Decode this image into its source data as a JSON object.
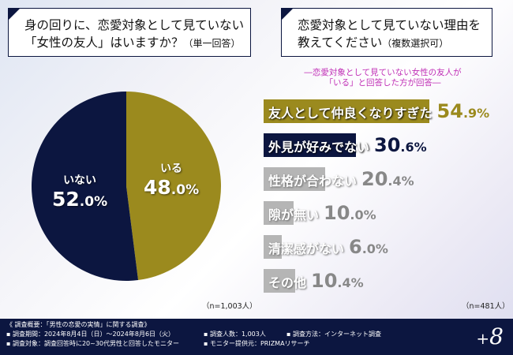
{
  "chart_data": [
    {
      "type": "pie",
      "title": "身の回りに、恋愛対象として見ていない「女性の友人」はいますか？",
      "title_note": "（単一回答）",
      "slices": [
        {
          "label": "いる",
          "value": 48.0,
          "color": "#9b8a1e"
        },
        {
          "label": "いない",
          "value": 52.0,
          "color": "#0c1640"
        }
      ],
      "n": "（n=1,003人）"
    },
    {
      "type": "bar",
      "orientation": "horizontal",
      "title": "恋愛対象として見ていない理由を教えてください",
      "title_note": "（複数選択可）",
      "subtitle": [
        "―恋愛対象として見ていない女性の友人が",
        "「いる」と回答した方が回答―"
      ],
      "categories": [
        "友人として仲良くなりすぎた",
        "外見が好みでない",
        "性格が合わない",
        "隙が無い",
        "清潔感がない",
        "その他"
      ],
      "values": [
        54.9,
        30.6,
        20.4,
        10.0,
        6.0,
        10.4
      ],
      "colors": [
        "#9b8a1e",
        "#0c1640",
        "#b5b5b5",
        "#b5b5b5",
        "#b5b5b5",
        "#b5b5b5"
      ],
      "unit": "%",
      "n": "（n=481人）"
    }
  ],
  "footer": {
    "title": "《 調査概要：「男性の恋愛の実情」に関する調査》",
    "period": "▪ 調査期間：2024年8月4日（日）～2024年8月6日（火）",
    "count": "▪ 調査人数：1,003人",
    "method": "▪ 調査方法：インターネット調査",
    "target": "▪ 調査対象：調査回答時に20~30代男性と回答したモニター",
    "provider": "▪ モニター提供元：PRIZMAリサーチ"
  },
  "logo": {
    "plus": "+",
    "eight": "8"
  }
}
